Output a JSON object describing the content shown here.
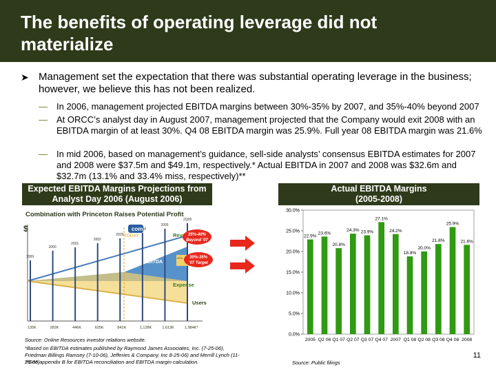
{
  "title": "The benefits of operating leverage did not materialize",
  "main_bullet": "Management set the expectation that there was substantial operating leverage in the business; however, we believe this has not been realized.",
  "sub_bullets": [
    "In 2006, management projected EBITDA margins between 30%-35% by 2007, and 35%-40% beyond 2007",
    "At ORCC’s analyst day in August 2007, management projected that the Company would exit 2008 with an EBITDA margin of at least 30%.  Q4 08 EBITDA margin was 25.9%.  Full year 08 EBITDA margin was 21.6%",
    "In mid 2006, based on management’s guidance, sell-side analysts’ consensus EBITDA estimates for 2007 and 2008 were $37.5m and $49.1m, respectively.*  Actual EBITDA in 2007 and 2008 was $32.6m and $32.7m (13.1% and 33.4% miss, respectively)**"
  ],
  "left_header": {
    "line1": "Expected EBITDA Margins Projections from",
    "line2": "Analyst Day 2006 (August 2006)"
  },
  "right_header": {
    "line1": "Actual EBITDA Margins",
    "line2": "(2005-2008)"
  },
  "diagram": {
    "title": "Combination with Princeton Raises Potential Profit",
    "dollar": "$",
    "years": [
      "1999",
      "2000",
      "2001",
      "2002",
      "2003",
      "2004",
      "2005",
      "2Q06"
    ],
    "users": [
      "135K",
      "282K",
      "446K",
      "625K",
      "841K",
      "1,128K",
      "1,613K",
      "1,984K*"
    ],
    "today": "TODAY",
    "brand": "com",
    "revenue_label": "Revenue",
    "ebitda_label": "EBITDA",
    "expense_label": "Expense",
    "users_label": "Users",
    "ebitda_pct": "20% - 25% Margin",
    "callout_beyond": "35%-40% Beyond '07",
    "callout_target": "30%-35% '07 Target"
  },
  "source_left": "Source: Online Resources investor relations website.",
  "footnote1": "*Based on EBITDA estimates published by Raymond James Associates, Inc. (7-25-06), Friedman Billings Ramsey (7-10-06), Jefferies & Company, Inc 8-25-06) and Merrill Lynch (11-28-06)",
  "footnote2": "**See appendix B for EBITDA reconciliation and EBITDA margin calculation.",
  "source_right": "Source:  Public filings",
  "page_number": "11",
  "colors": {
    "title_bg": "#2e3a1a",
    "bar": "#2f9a12",
    "callout": "#e8281c"
  },
  "chart_data": {
    "type": "bar",
    "title": "Actual EBITDA Margins (2005-2008)",
    "categories": [
      "2005",
      "Q2 06",
      "Q1 07",
      "Q2 07",
      "Q3 07",
      "Q4 07",
      "2007",
      "Q1 08",
      "Q2 08",
      "Q3 08",
      "Q4 08",
      "2008"
    ],
    "values": [
      22.9,
      23.6,
      20.8,
      24.3,
      23.9,
      27.1,
      24.2,
      18.8,
      20.0,
      21.8,
      25.9,
      21.6
    ],
    "labels": [
      "22.9%",
      "23.6%",
      "20.8%",
      "24.3%",
      "23.9%",
      "27.1%",
      "24.2%",
      "18.8%",
      "20.0%",
      "21.8%",
      "25.9%",
      "21.6%"
    ],
    "ylim": [
      0,
      30
    ],
    "yticks": [
      "0.0%",
      "5.0%",
      "10.0%",
      "15.0%",
      "20.0%",
      "25.0%",
      "30.0%"
    ],
    "xlabel": "",
    "ylabel": ""
  }
}
